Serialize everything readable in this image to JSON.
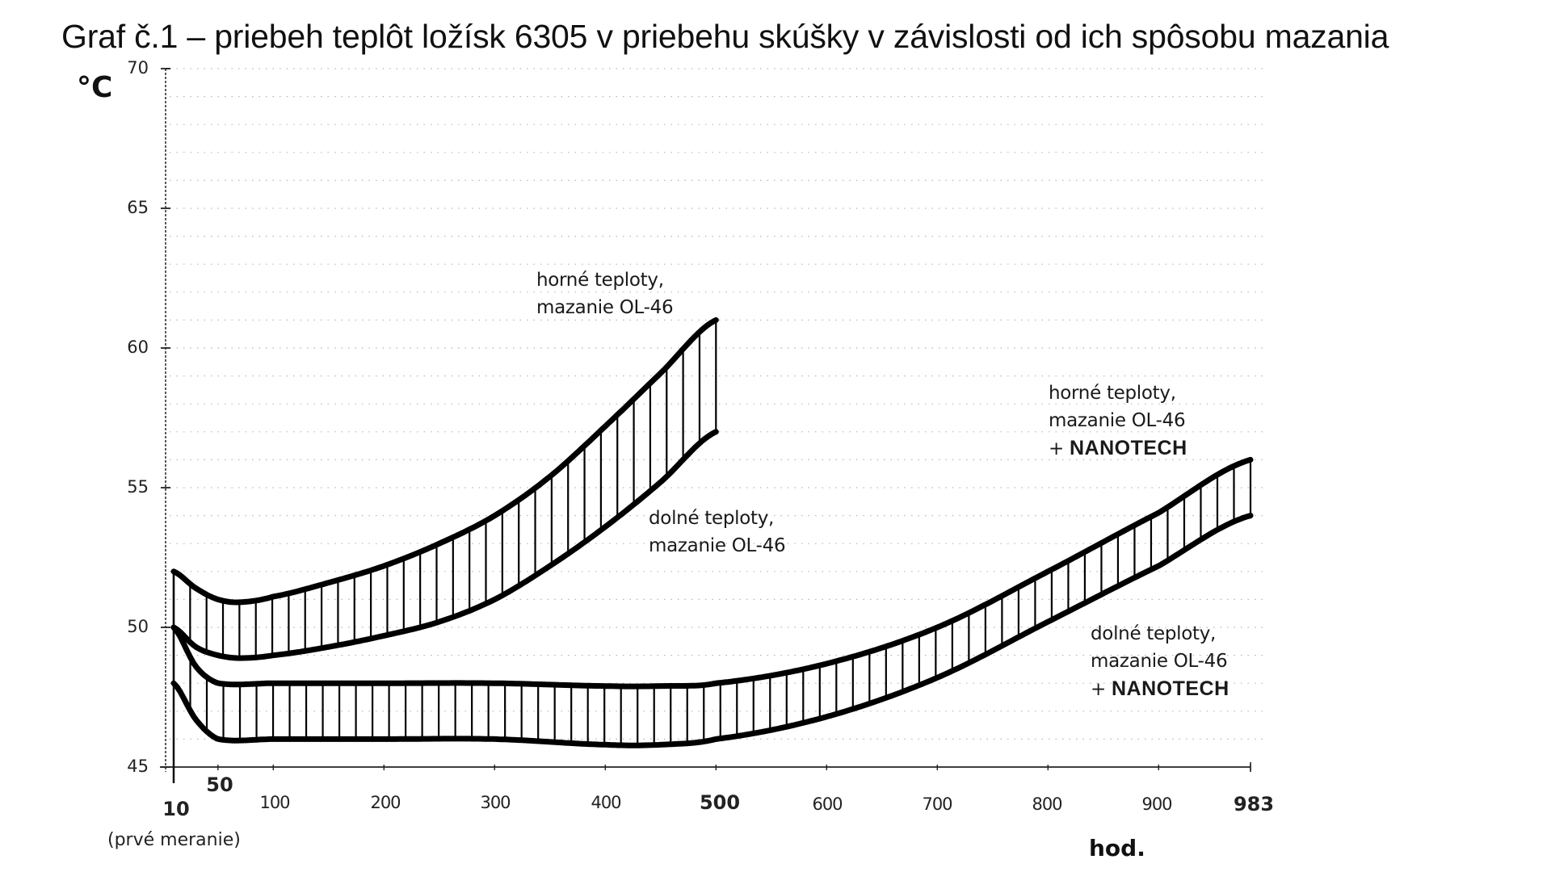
{
  "title": "Graf č.1 – priebeh teplôt ložísk 6305 v priebehu skúšky v závislosti od ich spôsobu mazania",
  "axes": {
    "y_unit": "°C",
    "x_unit": "hod.",
    "y_ticks": [
      "70",
      "65",
      "60",
      "55",
      "50",
      "45"
    ],
    "x_ticks": [
      "10",
      "50",
      "100",
      "200",
      "300",
      "400",
      "500",
      "600",
      "700",
      "800",
      "900",
      "983"
    ],
    "x_first_note": "(prvé meranie)"
  },
  "annotations": {
    "ol_upper": {
      "line1": "horné teploty,",
      "line2": "mazanie OL-46"
    },
    "ol_lower": {
      "line1": "dolné teploty,",
      "line2": "mazanie OL-46"
    },
    "nano_upper": {
      "line1": "horné teploty,",
      "line2": "mazanie OL-46",
      "plus": "+",
      "line3": "NANOTECH"
    },
    "nano_lower": {
      "line1": "dolné teploty,",
      "line2": "mazanie OL-46",
      "plus": "+",
      "line3": "NANOTECH"
    }
  },
  "chart_data": {
    "type": "area",
    "title": "Graf č.1 – priebeh teplôt ložísk 6305 v priebehu skúšky v závislosti od ich spôsobu mazania",
    "xlabel": "hod.",
    "ylabel": "°C",
    "xlim": [
      10,
      983
    ],
    "ylim": [
      45,
      70
    ],
    "y_ticks": [
      45,
      50,
      55,
      60,
      65,
      70
    ],
    "x_ticks": [
      10,
      50,
      100,
      200,
      300,
      400,
      500,
      600,
      700,
      800,
      900,
      983
    ],
    "grid": "horizontal dotted every 1 °C",
    "legend": "inline annotations",
    "series": [
      {
        "name": "horné teploty, mazanie OL-46",
        "x": [
          10,
          30,
          50,
          70,
          100,
          150,
          200,
          250,
          300,
          350,
          400,
          450,
          500
        ],
        "values": [
          52.0,
          51.4,
          51.0,
          50.9,
          51.1,
          51.6,
          52.2,
          53.0,
          54.0,
          55.4,
          57.2,
          59.1,
          61.0
        ]
      },
      {
        "name": "dolné teploty, mazanie OL-46",
        "x": [
          10,
          30,
          50,
          70,
          100,
          150,
          200,
          250,
          300,
          350,
          400,
          450,
          500
        ],
        "values": [
          50.0,
          49.3,
          49.0,
          48.9,
          49.0,
          49.3,
          49.7,
          50.2,
          51.0,
          52.2,
          53.6,
          55.2,
          57.0
        ]
      },
      {
        "name": "horné teploty, mazanie OL-46 + NANOTECH",
        "x": [
          10,
          30,
          50,
          100,
          200,
          300,
          400,
          450,
          500,
          600,
          700,
          800,
          900,
          983
        ],
        "values": [
          50.0,
          48.6,
          48.0,
          48.0,
          48.0,
          48.0,
          47.9,
          47.9,
          48.0,
          48.7,
          50.0,
          52.0,
          54.1,
          56.0
        ]
      },
      {
        "name": "dolné teploty, mazanie OL-46 + NANOTECH",
        "x": [
          10,
          30,
          50,
          100,
          200,
          300,
          400,
          450,
          500,
          600,
          700,
          800,
          900,
          983
        ],
        "values": [
          48.0,
          46.7,
          46.0,
          46.0,
          46.0,
          46.0,
          45.8,
          45.8,
          46.0,
          46.8,
          48.2,
          50.2,
          52.2,
          54.0
        ]
      }
    ],
    "bands": [
      {
        "name": "mazanie OL-46",
        "upper": "horné teploty, mazanie OL-46",
        "lower": "dolné teploty, mazanie OL-46",
        "fill": "vertical hatching"
      },
      {
        "name": "mazanie OL-46 + NANOTECH",
        "upper": "horné teploty, mazanie OL-46 + NANOTECH",
        "lower": "dolné teploty, mazanie OL-46 + NANOTECH",
        "fill": "vertical hatching"
      }
    ]
  },
  "colors": {
    "line": "#000000",
    "grid": "#9a9a9a",
    "background": "#ffffff"
  }
}
